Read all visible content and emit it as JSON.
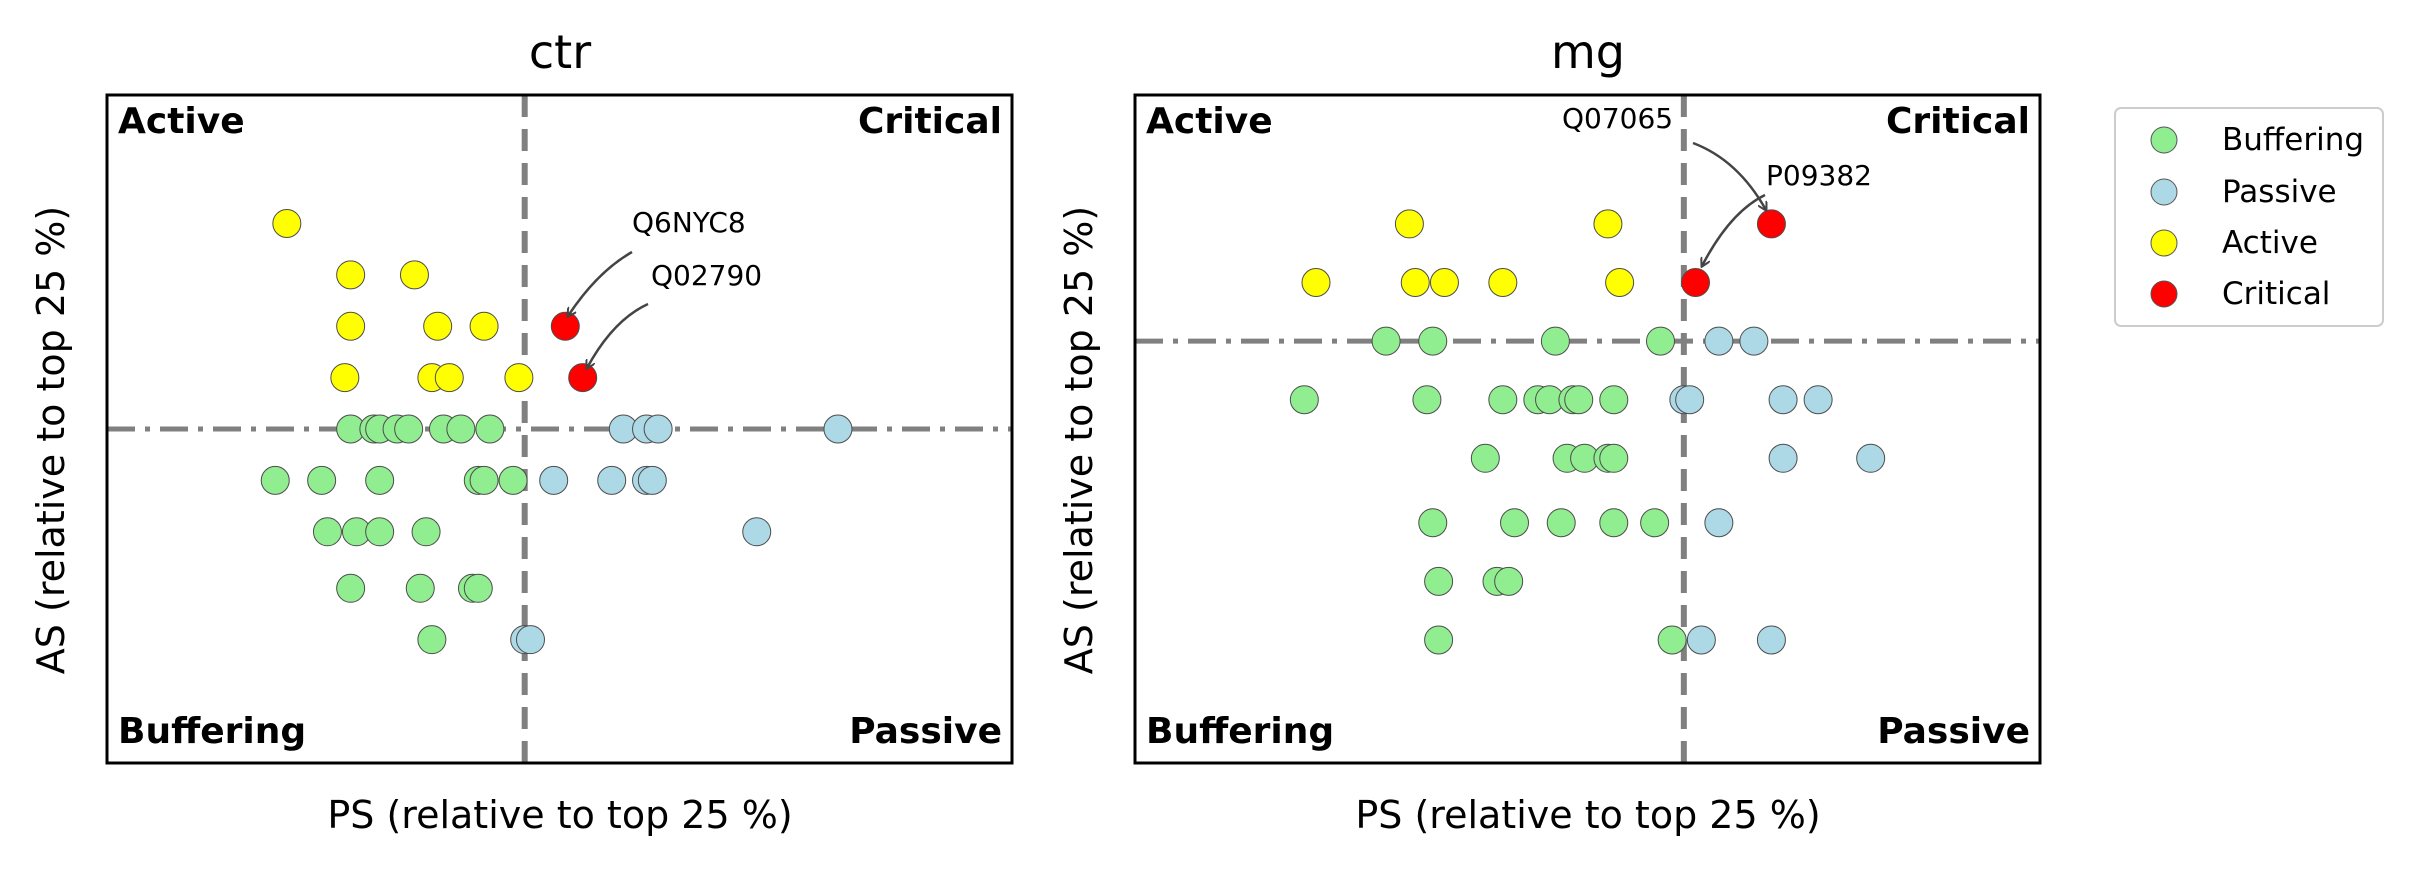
{
  "chart_data": [
    {
      "type": "scatter",
      "title": "ctr",
      "xlabel": "PS (relative to top 25 %)",
      "ylabel": "AS (relative to top 25 %)",
      "xlim": [
        -0.72,
        0.84
      ],
      "ylim": [
        -0.65,
        0.65
      ],
      "threshold_x": 0.0,
      "threshold_y": 0.0,
      "quadrant_labels": {
        "top_left": "Active",
        "top_right": "Critical",
        "bottom_left": "Buffering",
        "bottom_right": "Passive"
      },
      "series": [
        {
          "name": "Buffering",
          "color": "#90ee90",
          "points": [
            [
              -0.3,
              0
            ],
            [
              -0.26,
              0
            ],
            [
              -0.25,
              0
            ],
            [
              -0.22,
              0
            ],
            [
              -0.2,
              0
            ],
            [
              -0.14,
              0
            ],
            [
              -0.11,
              0
            ],
            [
              -0.06,
              0
            ],
            [
              -0.43,
              -0.1
            ],
            [
              -0.35,
              -0.1
            ],
            [
              -0.25,
              -0.1
            ],
            [
              -0.08,
              -0.1
            ],
            [
              -0.07,
              -0.1
            ],
            [
              -0.02,
              -0.1
            ],
            [
              -0.34,
              -0.2
            ],
            [
              -0.29,
              -0.2
            ],
            [
              -0.25,
              -0.2
            ],
            [
              -0.17,
              -0.2
            ],
            [
              -0.3,
              -0.31
            ],
            [
              -0.18,
              -0.31
            ],
            [
              -0.09,
              -0.31
            ],
            [
              -0.08,
              -0.31
            ],
            [
              -0.16,
              -0.41
            ]
          ]
        },
        {
          "name": "Passive",
          "color": "#add8e6",
          "points": [
            [
              0.17,
              0
            ],
            [
              0.21,
              0
            ],
            [
              0.23,
              0
            ],
            [
              0.54,
              0
            ],
            [
              0.05,
              -0.1
            ],
            [
              0.15,
              -0.1
            ],
            [
              0.21,
              -0.1
            ],
            [
              0.22,
              -0.1
            ],
            [
              0.4,
              -0.2
            ],
            [
              0.0,
              -0.41
            ],
            [
              0.01,
              -0.41
            ]
          ]
        },
        {
          "name": "Active",
          "color": "#ffff00",
          "points": [
            [
              -0.41,
              0.4
            ],
            [
              -0.3,
              0.3
            ],
            [
              -0.19,
              0.3
            ],
            [
              -0.3,
              0.2
            ],
            [
              -0.15,
              0.2
            ],
            [
              -0.07,
              0.2
            ],
            [
              -0.31,
              0.1
            ],
            [
              -0.16,
              0.1
            ],
            [
              -0.13,
              0.1
            ],
            [
              -0.01,
              0.1
            ]
          ]
        },
        {
          "name": "Critical",
          "color": "#ff0000",
          "points": [
            [
              0.07,
              0.2
            ],
            [
              0.1,
              0.1
            ]
          ]
        }
      ],
      "annotations": [
        {
          "text": "Q6NYC8",
          "target": [
            0.07,
            0.2
          ]
        },
        {
          "text": "Q02790",
          "target": [
            0.1,
            0.1
          ]
        }
      ]
    },
    {
      "type": "scatter",
      "title": "mg",
      "xlabel": "PS (relative to top 25 %)",
      "ylabel": "AS (relative to top 25 %)",
      "xlim": [
        -0.94,
        0.61
      ],
      "ylim": [
        -0.72,
        0.42
      ],
      "threshold_x": 0.0,
      "threshold_y": 0.0,
      "quadrant_labels": {
        "top_left": "Active",
        "top_right": "Critical",
        "bottom_left": "Buffering",
        "bottom_right": "Passive"
      },
      "series": [
        {
          "name": "Buffering",
          "color": "#90ee90",
          "points": [
            [
              -0.51,
              0
            ],
            [
              -0.43,
              0
            ],
            [
              -0.22,
              0
            ],
            [
              -0.04,
              0
            ],
            [
              -0.65,
              -0.1
            ],
            [
              -0.44,
              -0.1
            ],
            [
              -0.31,
              -0.1
            ],
            [
              -0.25,
              -0.1
            ],
            [
              -0.23,
              -0.1
            ],
            [
              -0.19,
              -0.1
            ],
            [
              -0.18,
              -0.1
            ],
            [
              -0.12,
              -0.1
            ],
            [
              -0.34,
              -0.2
            ],
            [
              -0.2,
              -0.2
            ],
            [
              -0.17,
              -0.2
            ],
            [
              -0.13,
              -0.2
            ],
            [
              -0.12,
              -0.2
            ],
            [
              -0.43,
              -0.31
            ],
            [
              -0.29,
              -0.31
            ],
            [
              -0.21,
              -0.31
            ],
            [
              -0.12,
              -0.31
            ],
            [
              -0.05,
              -0.31
            ],
            [
              -0.42,
              -0.41
            ],
            [
              -0.32,
              -0.41
            ],
            [
              -0.3,
              -0.41
            ],
            [
              -0.42,
              -0.51
            ],
            [
              -0.02,
              -0.51
            ]
          ]
        },
        {
          "name": "Passive",
          "color": "#add8e6",
          "points": [
            [
              0.06,
              0
            ],
            [
              0.12,
              0
            ],
            [
              0.0,
              -0.1
            ],
            [
              0.01,
              -0.1
            ],
            [
              0.17,
              -0.1
            ],
            [
              0.23,
              -0.1
            ],
            [
              0.17,
              -0.2
            ],
            [
              0.32,
              -0.2
            ],
            [
              0.06,
              -0.31
            ],
            [
              0.03,
              -0.51
            ],
            [
              0.15,
              -0.51
            ]
          ]
        },
        {
          "name": "Active",
          "color": "#ffff00",
          "points": [
            [
              -0.47,
              0.2
            ],
            [
              -0.13,
              0.2
            ],
            [
              -0.63,
              0.1
            ],
            [
              -0.46,
              0.1
            ],
            [
              -0.41,
              0.1
            ],
            [
              -0.31,
              0.1
            ],
            [
              -0.11,
              0.1
            ]
          ]
        },
        {
          "name": "Critical",
          "color": "#ff0000",
          "points": [
            [
              0.15,
              0.2
            ],
            [
              0.02,
              0.1
            ]
          ]
        }
      ],
      "annotations": [
        {
          "text": "Q07065",
          "target": [
            0.02,
            0.1
          ]
        },
        {
          "text": "P09382",
          "target": [
            0.15,
            0.2
          ]
        }
      ]
    }
  ],
  "legend": {
    "placement": "right",
    "entries": [
      {
        "label": "Buffering",
        "color": "#90ee90"
      },
      {
        "label": "Passive",
        "color": "#add8e6"
      },
      {
        "label": "Active",
        "color": "#ffff00"
      },
      {
        "label": "Critical",
        "color": "#ff0000"
      }
    ]
  }
}
